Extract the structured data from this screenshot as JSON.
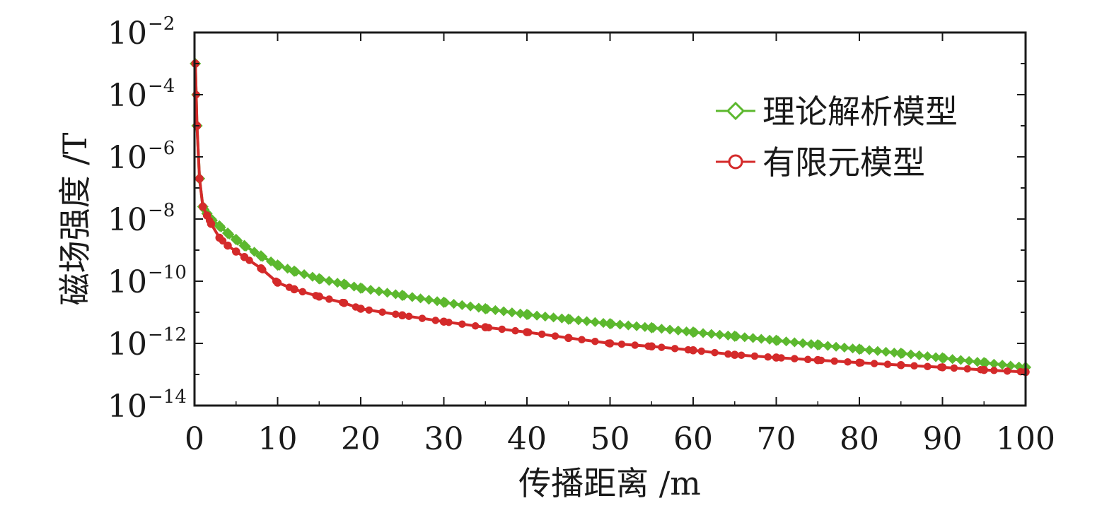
{
  "chart_data": {
    "type": "line",
    "title": "",
    "xlabel": "传播距离 /m",
    "ylabel": "磁场强度 /T",
    "xlim": [
      0,
      100
    ],
    "ylim": [
      1e-14,
      0.01
    ],
    "y_scale": "log",
    "x_ticks": [
      0,
      10,
      20,
      30,
      40,
      50,
      60,
      70,
      80,
      90,
      100
    ],
    "x_tick_labels": [
      "0",
      "10",
      "20",
      "30",
      "40",
      "50",
      "60",
      "70",
      "80",
      "90",
      "100"
    ],
    "y_ticks": [
      1e-14,
      1e-12,
      1e-10,
      1e-08,
      1e-06,
      0.0001,
      0.01
    ],
    "y_tick_labels": [
      {
        "base": "10",
        "exp": "−14"
      },
      {
        "base": "10",
        "exp": "−12"
      },
      {
        "base": "10",
        "exp": "−10"
      },
      {
        "base": "10",
        "exp": "−8"
      },
      {
        "base": "10",
        "exp": "−6"
      },
      {
        "base": "10",
        "exp": "−4"
      },
      {
        "base": "10",
        "exp": "−2"
      }
    ],
    "grid": false,
    "legend_position": "top-right",
    "series": [
      {
        "name": "理论解析模型",
        "color": "#5cb82e",
        "marker": "diamond",
        "x": [
          0.1,
          0.3,
          0.6,
          1,
          1.5,
          2,
          3,
          4,
          5,
          6,
          8,
          10,
          12,
          15,
          18,
          20,
          25,
          30,
          35,
          40,
          45,
          50,
          55,
          60,
          65,
          70,
          75,
          80,
          85,
          90,
          95,
          100
        ],
        "y": [
          0.001,
          1e-05,
          2e-07,
          2.5e-08,
          1.5e-08,
          1e-08,
          6e-09,
          3.5e-09,
          2.2e-09,
          1.4e-09,
          6.5e-10,
          3.3e-10,
          2.1e-10,
          1.2e-10,
          8e-11,
          6e-11,
          3.5e-11,
          2.1e-11,
          1.3e-11,
          8.5e-12,
          6e-12,
          4.3e-12,
          3.2e-12,
          2.3e-12,
          1.7e-12,
          1.25e-12,
          9e-13,
          6.5e-13,
          4.8e-13,
          3.4e-13,
          2.4e-13,
          1.7e-13
        ]
      },
      {
        "name": "有限元模型",
        "color": "#d42a2a",
        "marker": "circle",
        "x": [
          0.1,
          0.3,
          0.6,
          1,
          1.5,
          2,
          3,
          4,
          5,
          6,
          8,
          10,
          12,
          15,
          18,
          20,
          25,
          30,
          35,
          40,
          45,
          50,
          55,
          60,
          65,
          70,
          75,
          80,
          85,
          90,
          95,
          100
        ],
        "y": [
          0.001,
          1e-05,
          2e-07,
          2.5e-08,
          1.3e-08,
          7e-09,
          2.5e-09,
          1.4e-09,
          9e-10,
          6e-10,
          2.6e-10,
          9e-11,
          5.5e-11,
          3.2e-11,
          2e-11,
          1.3e-11,
          8e-12,
          5e-12,
          3.3e-12,
          2.3e-12,
          1.5e-12,
          1e-12,
          8e-13,
          6e-13,
          4.3e-13,
          3.5e-13,
          2.9e-13,
          2.4e-13,
          2e-13,
          1.7e-13,
          1.4e-13,
          1.2e-13
        ]
      }
    ]
  }
}
